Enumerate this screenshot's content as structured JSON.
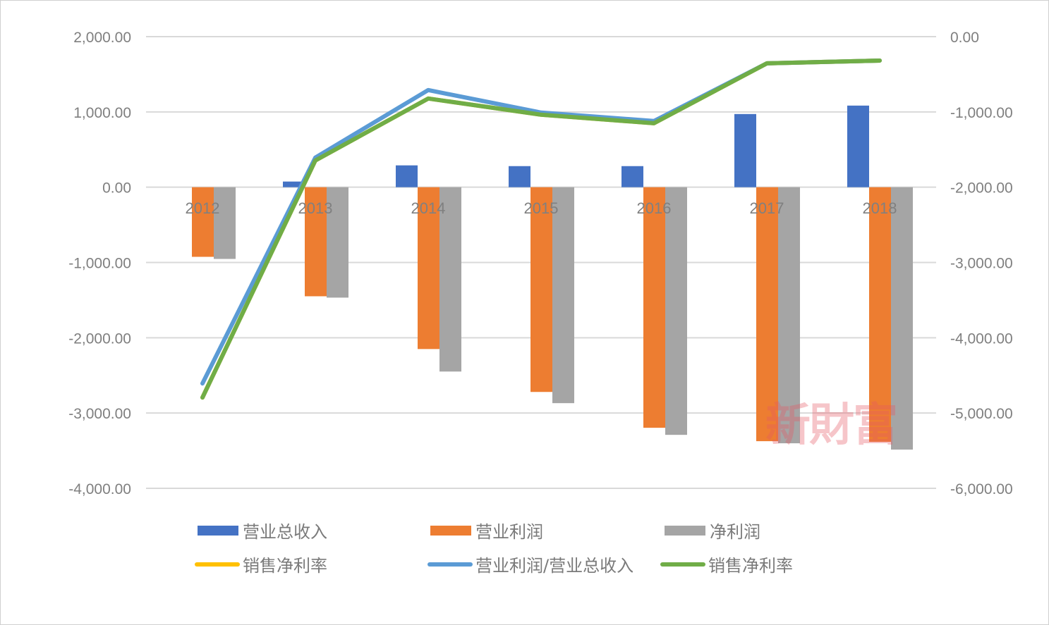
{
  "chart_data": {
    "type": "bar",
    "title": "",
    "categories": [
      "2012",
      "2013",
      "2014",
      "2015",
      "2016",
      "2017",
      "2018"
    ],
    "left_axis": {
      "ticks": [
        "2,000.00",
        "1,000.00",
        "0.00",
        "-1,000.00",
        "-2,000.00",
        "-3,000.00",
        "-4,000.00"
      ],
      "ylim": [
        -4000,
        2000
      ]
    },
    "right_axis": {
      "ticks": [
        "0.00",
        "-1,000.00",
        "-2,000.00",
        "-3,000.00",
        "-4,000.00",
        "-5,000.00",
        "-6,000.00"
      ],
      "ylim": [
        -6000,
        0
      ]
    },
    "series": [
      {
        "name": "营业总收入",
        "type": "bar",
        "axis": "left",
        "color": "#4472C4",
        "values": [
          0,
          75,
          290,
          280,
          280,
          972,
          1084
        ]
      },
      {
        "name": "营业利润",
        "type": "bar",
        "axis": "left",
        "color": "#ED7D31",
        "values": [
          -925,
          -1449,
          -2150,
          -2720,
          -3196,
          -3374,
          -3383
        ]
      },
      {
        "name": "净利润",
        "type": "bar",
        "axis": "left",
        "color": "#A5A5A5",
        "values": [
          -953,
          -1467,
          -2449,
          -2869,
          -3290,
          -3402,
          -3486
        ]
      },
      {
        "name": "销售净利率",
        "type": "line",
        "axis": "right",
        "color": "#FFC000",
        "values": [
          -4794,
          -1645,
          -822,
          -1037,
          -1150,
          -355,
          -318
        ]
      },
      {
        "name": "营业利润/营业总收入",
        "type": "line",
        "axis": "right",
        "color": "#5B9BD5",
        "values": [
          -4607,
          -1607,
          -710,
          -1009,
          -1121,
          -355,
          -318
        ]
      },
      {
        "name": "销售净利率",
        "type": "line",
        "axis": "right",
        "color": "#70AD47",
        "values": [
          -4794,
          -1645,
          -822,
          -1037,
          -1150,
          -355,
          -318
        ]
      }
    ],
    "grid": true,
    "legend_position": "bottom"
  },
  "legend": [
    {
      "label": "营业总收入",
      "kind": "bar",
      "color": "#4472C4"
    },
    {
      "label": "营业利润",
      "kind": "bar",
      "color": "#ED7D31"
    },
    {
      "label": "净利润",
      "kind": "bar",
      "color": "#A5A5A5"
    },
    {
      "label": "销售净利率",
      "kind": "line",
      "color": "#FFC000"
    },
    {
      "label": "营业利润/营业总收入",
      "kind": "line",
      "color": "#5B9BD5"
    },
    {
      "label": "销售净利率",
      "kind": "line",
      "color": "#70AD47"
    }
  ],
  "watermark": "新財富"
}
